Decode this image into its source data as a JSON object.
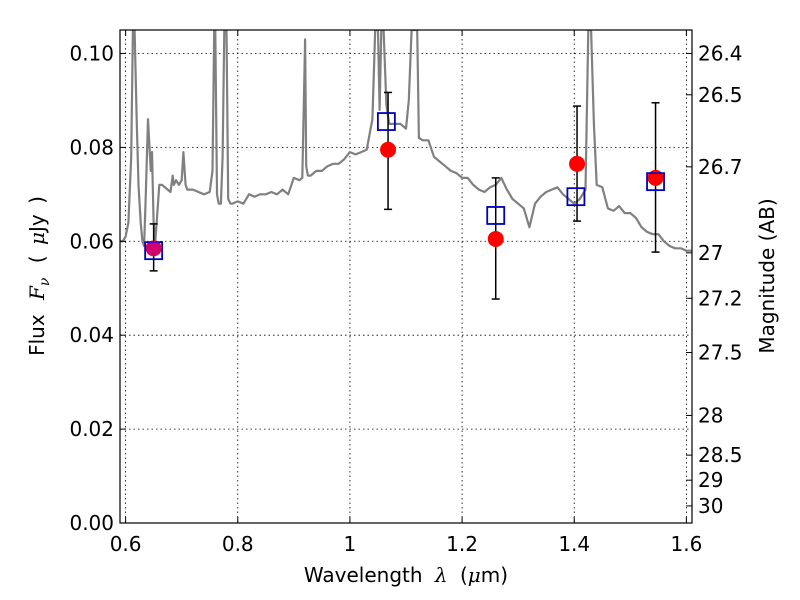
{
  "chart_data": {
    "type": "scatter",
    "title": "",
    "xlabel": {
      "prefix": "Wavelength",
      "symbol": "λ",
      "units_open": "(",
      "units_mu": "μ",
      "units_rest": "m)"
    },
    "ylabel": {
      "prefix": "Flux",
      "symbol": "F",
      "subscript": "ν",
      "units_open": "(",
      "units_mu": "μ",
      "units_rest": "Jy",
      "units_close": ")"
    },
    "ylabel_right": "Magnitude (AB)",
    "xlim": [
      0.59,
      1.61
    ],
    "ylim": [
      0.0,
      0.105
    ],
    "grid": true,
    "x_ticks": [
      {
        "value": 0.6,
        "label": "0.6"
      },
      {
        "value": 0.8,
        "label": "0.8"
      },
      {
        "value": 1.0,
        "label": "1"
      },
      {
        "value": 1.2,
        "label": "1.2"
      },
      {
        "value": 1.4,
        "label": "1.4"
      },
      {
        "value": 1.6,
        "label": "1.6"
      }
    ],
    "y_ticks": [
      {
        "value": 0.0,
        "label": "0.00"
      },
      {
        "value": 0.02,
        "label": "0.02"
      },
      {
        "value": 0.04,
        "label": "0.04"
      },
      {
        "value": 0.06,
        "label": "0.06"
      },
      {
        "value": 0.08,
        "label": "0.08"
      },
      {
        "value": 0.1,
        "label": "0.10"
      }
    ],
    "right_ticks": [
      {
        "mag": 26.4,
        "label": "26.4"
      },
      {
        "mag": 26.5,
        "label": "26.5"
      },
      {
        "mag": 26.7,
        "label": "26.7"
      },
      {
        "mag": 27.0,
        "label": "27"
      },
      {
        "mag": 27.2,
        "label": "27.2"
      },
      {
        "mag": 27.5,
        "label": "27.5"
      },
      {
        "mag": 28.0,
        "label": "28"
      },
      {
        "mag": 28.5,
        "label": "28.5"
      },
      {
        "mag": 29.0,
        "label": "29"
      },
      {
        "mag": 30.0,
        "label": "30"
      }
    ],
    "series": [
      {
        "kind": "line",
        "color": "#808080",
        "x": [
          0.59,
          0.595,
          0.6,
          0.605,
          0.61,
          0.613,
          0.616,
          0.62,
          0.623,
          0.627,
          0.63,
          0.633,
          0.636,
          0.64,
          0.645,
          0.647,
          0.65,
          0.653,
          0.656,
          0.66,
          0.665,
          0.67,
          0.675,
          0.68,
          0.684,
          0.686,
          0.69,
          0.695,
          0.7,
          0.703,
          0.707,
          0.71,
          0.72,
          0.73,
          0.74,
          0.75,
          0.755,
          0.758,
          0.76,
          0.763,
          0.766,
          0.77,
          0.773,
          0.776,
          0.778,
          0.78,
          0.783,
          0.787,
          0.79,
          0.8,
          0.81,
          0.82,
          0.83,
          0.84,
          0.85,
          0.86,
          0.87,
          0.88,
          0.89,
          0.9,
          0.91,
          0.915,
          0.918,
          0.92,
          0.922,
          0.925,
          0.93,
          0.94,
          0.95,
          0.96,
          0.97,
          0.98,
          0.99,
          1.0,
          1.01,
          1.02,
          1.03,
          1.04,
          1.045,
          1.048,
          1.05,
          1.053,
          1.056,
          1.06,
          1.065,
          1.07,
          1.08,
          1.09,
          1.1,
          1.105,
          1.11,
          1.113,
          1.116,
          1.12,
          1.123,
          1.13,
          1.14,
          1.15,
          1.16,
          1.17,
          1.18,
          1.19,
          1.2,
          1.21,
          1.22,
          1.23,
          1.24,
          1.25,
          1.26,
          1.27,
          1.28,
          1.29,
          1.3,
          1.31,
          1.32,
          1.33,
          1.34,
          1.35,
          1.36,
          1.37,
          1.38,
          1.39,
          1.4,
          1.41,
          1.42,
          1.425,
          1.43,
          1.435,
          1.44,
          1.45,
          1.46,
          1.47,
          1.48,
          1.49,
          1.5,
          1.51,
          1.52,
          1.53,
          1.54,
          1.55,
          1.56,
          1.57,
          1.58,
          1.59,
          1.6,
          1.61
        ],
        "y": [
          0.06,
          0.06,
          0.061,
          0.064,
          0.078,
          0.105,
          0.105,
          0.085,
          0.072,
          0.064,
          0.06,
          0.059,
          0.07,
          0.086,
          0.075,
          0.079,
          0.064,
          0.06,
          0.065,
          0.072,
          0.072,
          0.0715,
          0.071,
          0.0705,
          0.074,
          0.072,
          0.073,
          0.072,
          0.073,
          0.079,
          0.072,
          0.071,
          0.071,
          0.0705,
          0.07,
          0.0705,
          0.075,
          0.105,
          0.105,
          0.07,
          0.068,
          0.068,
          0.078,
          0.105,
          0.105,
          0.105,
          0.069,
          0.068,
          0.068,
          0.0685,
          0.068,
          0.07,
          0.0695,
          0.07,
          0.07,
          0.0705,
          0.07,
          0.071,
          0.07,
          0.0735,
          0.073,
          0.0735,
          0.09,
          0.103,
          0.076,
          0.074,
          0.074,
          0.075,
          0.075,
          0.076,
          0.0765,
          0.0765,
          0.0775,
          0.079,
          0.0785,
          0.079,
          0.0795,
          0.086,
          0.105,
          0.105,
          0.105,
          0.088,
          0.105,
          0.105,
          0.089,
          0.085,
          0.085,
          0.085,
          0.084,
          0.09,
          0.105,
          0.105,
          0.105,
          0.105,
          0.082,
          0.0815,
          0.0815,
          0.078,
          0.077,
          0.076,
          0.075,
          0.0745,
          0.0735,
          0.0735,
          0.072,
          0.071,
          0.0705,
          0.0715,
          0.072,
          0.0735,
          0.071,
          0.069,
          0.068,
          0.067,
          0.063,
          0.068,
          0.0695,
          0.0705,
          0.071,
          0.0715,
          0.07,
          0.069,
          0.068,
          0.069,
          0.071,
          0.105,
          0.105,
          0.085,
          0.072,
          0.0715,
          0.067,
          0.0665,
          0.0675,
          0.066,
          0.066,
          0.065,
          0.063,
          0.062,
          0.0615,
          0.0615,
          0.06,
          0.059,
          0.0585,
          0.0585,
          0.058,
          0.058
        ]
      },
      {
        "kind": "errorbar_points",
        "marker": "circle",
        "color": "#ff0000",
        "x": [
          0.65,
          1.068,
          1.26,
          1.405,
          1.545
        ],
        "y": [
          0.0585,
          0.0795,
          0.0605,
          0.0765,
          0.0735
        ],
        "y_low": [
          0.0537,
          0.0668,
          0.0477,
          0.0643,
          0.0577
        ],
        "y_high": [
          0.0637,
          0.0917,
          0.0735,
          0.0888,
          0.0895
        ]
      },
      {
        "kind": "points",
        "marker": "square",
        "color": "#0000bb",
        "x": [
          0.65,
          1.065,
          1.26,
          1.403,
          1.545
        ],
        "y": [
          0.058,
          0.0855,
          0.0655,
          0.0695,
          0.0727
        ]
      }
    ]
  }
}
